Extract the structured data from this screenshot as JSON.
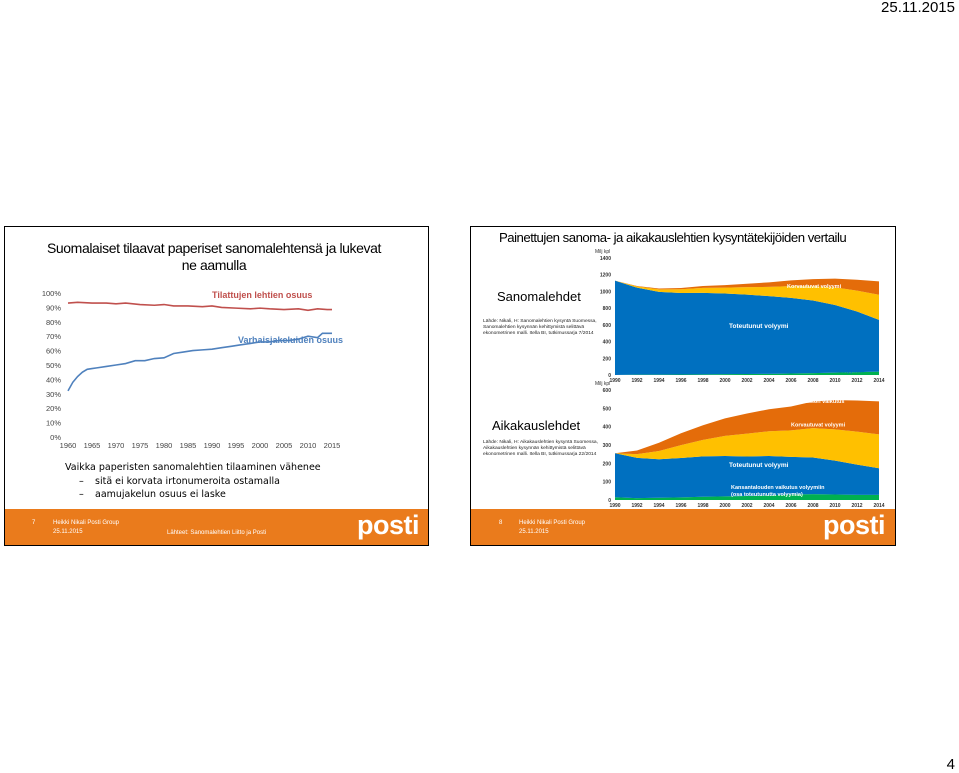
{
  "header": {
    "date": "25.11.2015"
  },
  "page_number": "4",
  "slide1": {
    "title": "Suomalaiset tilaavat paperiset sanomalehtensä ja lukevat ne aamulla",
    "bullets": {
      "main": "Vaikka paperisten sanomalehtien tilaaminen vähenee",
      "subs": [
        "sitä ei korvata irtonumeroita ostamalla",
        "aamujakelun osuus ei laske"
      ]
    },
    "footer": {
      "slide_no": "7",
      "company": "Heikki Nikali Posti Group",
      "date": "25.11.2015",
      "source": "Lähteet: Sanomalehtien Liitto ja Posti",
      "logo": "posti"
    },
    "chart_data": {
      "type": "line",
      "x_ticks": [
        "1960",
        "1965",
        "1970",
        "1975",
        "1980",
        "1985",
        "1990",
        "1995",
        "2000",
        "2005",
        "2010",
        "2015"
      ],
      "y_ticks": [
        "0%",
        "10%",
        "20%",
        "30%",
        "40%",
        "50%",
        "60%",
        "70%",
        "80%",
        "90%",
        "100%"
      ],
      "ylim": [
        0,
        100
      ],
      "series": [
        {
          "name": "Tilattujen lehtien osuus",
          "color": "#c0504d",
          "x": [
            1960,
            1962,
            1965,
            1968,
            1970,
            1972,
            1975,
            1978,
            1980,
            1982,
            1985,
            1988,
            1990,
            1992,
            1995,
            1998,
            2000,
            2002,
            2005,
            2008,
            2010,
            2012,
            2014,
            2015
          ],
          "y": [
            93,
            93.5,
            93,
            93,
            92.5,
            93,
            92,
            91.5,
            92,
            91,
            91,
            90.5,
            91,
            90,
            89.5,
            89,
            89.5,
            89,
            88.5,
            89,
            88,
            89,
            88.5,
            88.5
          ]
        },
        {
          "name": "Varhaisjakeluiden osuus",
          "color": "#4f81bd",
          "x": [
            1960,
            1961,
            1962,
            1963,
            1964,
            1965,
            1966,
            1968,
            1970,
            1972,
            1974,
            1976,
            1978,
            1980,
            1982,
            1984,
            1986,
            1988,
            1990,
            1992,
            1994,
            1996,
            1998,
            2000,
            2002,
            2004,
            2006,
            2008,
            2010,
            2012,
            2013,
            2014,
            2015
          ],
          "y": [
            32,
            38,
            42,
            45,
            47,
            47.5,
            48,
            49,
            50,
            51,
            53,
            53,
            54.5,
            55,
            58,
            59,
            60,
            60.5,
            61,
            62,
            63,
            64,
            65,
            66,
            66,
            67,
            67,
            68,
            70,
            69,
            72,
            72,
            72
          ]
        }
      ]
    }
  },
  "slide2": {
    "title": "Painettujen sanoma- ja aikakauslehtien kysyntätekijöiden vertailu",
    "sections": [
      {
        "title": "Sanomalehdet",
        "source": [
          "Lähde: Nikali, H: Sanomalehtien kysyntä Suomessa,",
          "Sanomalehtien kysynnän kehittymistä selittävä",
          "ekonometrinen malli. Itella BI, tutkimussarja 7/2014"
        ]
      },
      {
        "title": "Aikakauslehdet",
        "source": [
          "Lähde: Nikali, H: Aikakauslehtien kysyntä Suomessa,",
          "Aikakauslehtien kysynnän kehittymistä selittävä",
          "ekonometrinen malli. Itella BI, tutkimussarja 22/2014"
        ]
      }
    ],
    "footer": {
      "slide_no": "8",
      "company": "Heikki Nikali Posti Group",
      "date": "25.11.2015",
      "logo": "posti"
    },
    "chart_data": [
      {
        "type": "area",
        "ylabel": "Milj kpl",
        "y_ticks": [
          "0",
          "200",
          "400",
          "600",
          "800",
          "1000",
          "1200",
          "1400"
        ],
        "ylim": [
          0,
          1400
        ],
        "x_ticks": [
          "1990",
          "1992",
          "1994",
          "1996",
          "1998",
          "2000",
          "2002",
          "2004",
          "2006",
          "2008",
          "2010",
          "2012",
          "2014"
        ],
        "xlim": [
          1990,
          2014
        ],
        "x": [
          1990,
          1992,
          1994,
          1996,
          1998,
          2000,
          2002,
          2004,
          2006,
          2008,
          2010,
          2012,
          2014
        ],
        "series": [
          {
            "name": "Kansantalouden vaikutus volyymiin",
            "color": "#00b050",
            "values": [
              0,
              5,
              5,
              6,
              8,
              10,
              12,
              14,
              18,
              22,
              28,
              35,
              40
            ]
          },
          {
            "name": "Toteutunut volyymi",
            "color": "#0070c0",
            "values": [
              1130,
              1040,
              990,
              975,
              975,
              965,
              950,
              930,
              905,
              870,
              810,
              725,
              620
            ]
          },
          {
            "name": "Korvautuvat volyymi",
            "color": "#ffc000",
            "values": [
              0,
              15,
              30,
              45,
              60,
              70,
              90,
              110,
              140,
              170,
              210,
              250,
              300
            ]
          },
          {
            "name": "Hintajouston vaikutus",
            "color": "#e46c0a",
            "values": [
              0,
              5,
              10,
              15,
              22,
              30,
              40,
              55,
              70,
              85,
              105,
              130,
              160
            ]
          }
        ],
        "legend_position": "inside"
      },
      {
        "type": "area",
        "ylabel": "Milj kpl",
        "y_ticks": [
          "0",
          "100",
          "200",
          "300",
          "400",
          "500",
          "600"
        ],
        "ylim": [
          0,
          600
        ],
        "x_ticks": [
          "1990",
          "1992",
          "1994",
          "1996",
          "1998",
          "2000",
          "2002",
          "2004",
          "2006",
          "2008",
          "2010",
          "2012",
          "2014"
        ],
        "xlim": [
          1990,
          2014
        ],
        "x": [
          1990,
          1992,
          1994,
          1996,
          1998,
          2000,
          2002,
          2004,
          2006,
          2008,
          2010,
          2012,
          2014
        ],
        "series": [
          {
            "name": "Kansantalouden vaikutus volyymiin (osa toteutunutta volyymia)",
            "color": "#00b050",
            "values": [
              15,
              10,
              12,
              14,
              18,
              20,
              22,
              25,
              30,
              32,
              30,
              28,
              28
            ]
          },
          {
            "name": "Toteutunut volyymi",
            "color": "#0070c0",
            "values": [
              240,
              220,
              210,
              215,
              220,
              220,
              215,
              215,
              205,
              200,
              185,
              165,
              145
            ]
          },
          {
            "name": "Korvautuvat volyymi",
            "color": "#ffc000",
            "values": [
              0,
              20,
              45,
              70,
              90,
              110,
              125,
              135,
              145,
              160,
              170,
              180,
              185
            ]
          },
          {
            "name": "Hintajouston vaikutus",
            "color": "#e46c0a",
            "values": [
              0,
              20,
              45,
              65,
              80,
              95,
              110,
              120,
              130,
              145,
              160,
              170,
              180
            ]
          }
        ],
        "legend_position": "inside"
      }
    ]
  }
}
